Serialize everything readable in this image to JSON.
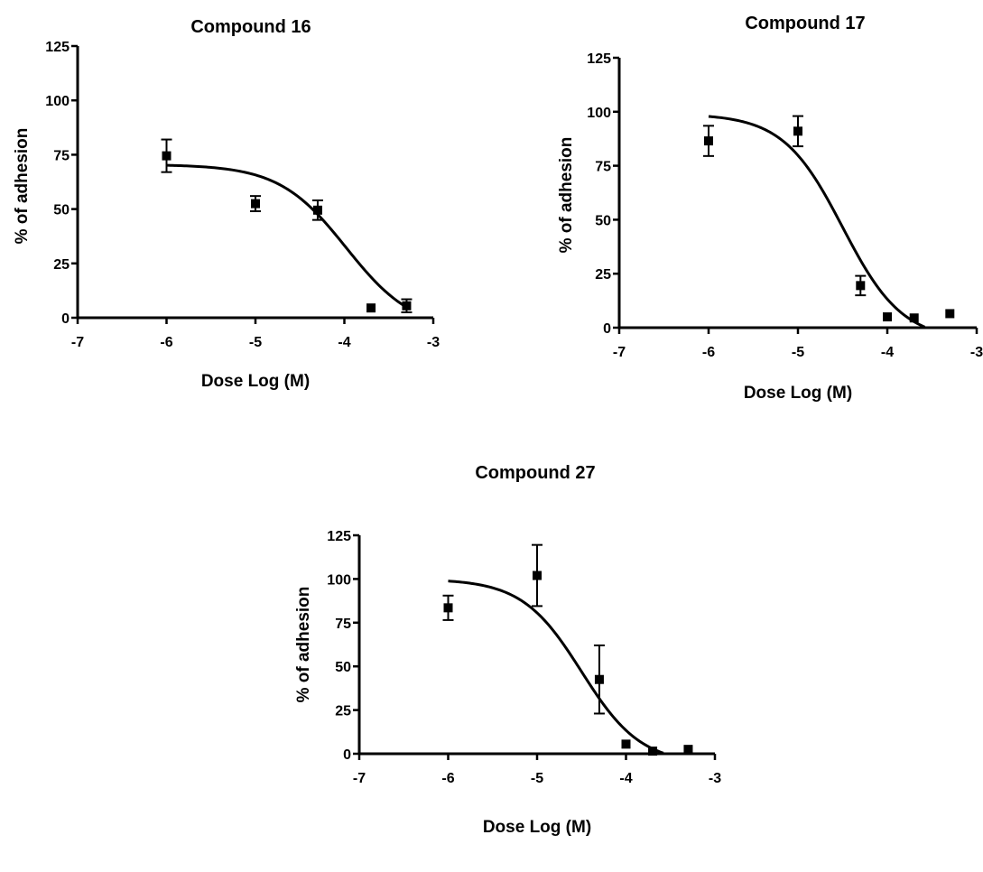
{
  "chart_data": [
    {
      "type": "scatter",
      "title": "Compound 16",
      "xlabel": "Dose Log (M)",
      "ylabel": "% of adhesion",
      "xlim": [
        -7,
        -3
      ],
      "ylim": [
        0,
        125
      ],
      "xticks": [
        -7,
        -6,
        -5,
        -4,
        -3
      ],
      "yticks": [
        0,
        25,
        50,
        75,
        100,
        125
      ],
      "points": [
        {
          "x": -6.0,
          "y": 74.5,
          "err": 7.5
        },
        {
          "x": -5.0,
          "y": 52.5,
          "err": 3.5
        },
        {
          "x": -4.3,
          "y": 49.5,
          "err": 4.5
        },
        {
          "x": -3.7,
          "y": 4.5,
          "err": 0
        },
        {
          "x": -3.3,
          "y": 5.5,
          "err": 3
        }
      ],
      "fit": {
        "top": 70.5,
        "bottom": -6,
        "log_ec50": -3.98,
        "hill": -1.15,
        "x_start": -6.0,
        "x_end": -3.32
      }
    },
    {
      "type": "scatter",
      "title": "Compound 17",
      "xlabel": "Dose Log (M)",
      "ylabel": "% of adhesion",
      "xlim": [
        -7,
        -3
      ],
      "ylim": [
        0,
        125
      ],
      "xticks": [
        -7,
        -6,
        -5,
        -4,
        -3
      ],
      "yticks": [
        0,
        25,
        50,
        75,
        100,
        125
      ],
      "points": [
        {
          "x": -6.0,
          "y": 86.5,
          "err": 7
        },
        {
          "x": -5.0,
          "y": 91.0,
          "err": 7
        },
        {
          "x": -4.3,
          "y": 19.5,
          "err": 4.5
        },
        {
          "x": -4.0,
          "y": 5.0,
          "err": 0
        },
        {
          "x": -3.7,
          "y": 4.5,
          "err": 0
        },
        {
          "x": -3.3,
          "y": 6.5,
          "err": 0
        }
      ],
      "fit": {
        "top": 99,
        "bottom": -6,
        "log_ec50": -4.5,
        "hill": -1.3,
        "x_start": -6.0,
        "x_end": -3.58
      }
    },
    {
      "type": "scatter",
      "title": "Compound 27",
      "xlabel": "Dose Log (M)",
      "ylabel": "% of adhesion",
      "xlim": [
        -7,
        -3
      ],
      "ylim": [
        0,
        125
      ],
      "xticks": [
        -7,
        -6,
        -5,
        -4,
        -3
      ],
      "yticks": [
        0,
        25,
        50,
        75,
        100,
        125
      ],
      "points": [
        {
          "x": -6.0,
          "y": 83.5,
          "err": 7
        },
        {
          "x": -5.0,
          "y": 102.0,
          "err": 17.5
        },
        {
          "x": -4.3,
          "y": 42.5,
          "err": 19.5
        },
        {
          "x": -4.0,
          "y": 5.5,
          "err": 0
        },
        {
          "x": -3.7,
          "y": 1.5,
          "err": 0
        },
        {
          "x": -3.3,
          "y": 2.5,
          "err": 0
        }
      ],
      "fit": {
        "top": 100,
        "bottom": -6,
        "log_ec50": -4.5,
        "hill": -1.3,
        "x_start": -6.0,
        "x_end": -3.58
      }
    }
  ]
}
